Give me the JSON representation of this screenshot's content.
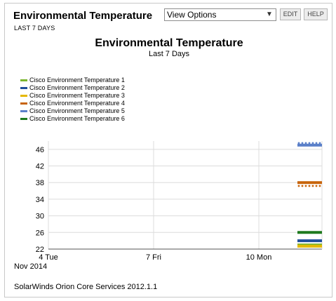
{
  "widget": {
    "title": "Environmental Temperature",
    "subtitle": "LAST 7 DAYS",
    "view_options": "View Options",
    "edit_label": "EDIT",
    "help_label": "HELP"
  },
  "footer": {
    "text": "SolarWinds Orion Core Services 2012.1.1"
  },
  "colors": {
    "border": "#c8c8c8",
    "grid": "#d8d8d8",
    "button_bg": "#ececec"
  },
  "chart_data": {
    "type": "scatter",
    "title": "Environmental Temperature",
    "subtitle": "Last 7 Days",
    "legend_placement": "top-left",
    "grid": true,
    "y_ticks": [
      22,
      26,
      30,
      34,
      38,
      42,
      46
    ],
    "ylim": [
      22,
      48
    ],
    "x_ticks": [
      "4 Tue",
      "7 Fri",
      "10 Mon"
    ],
    "x_sublabel": "Nov 2014",
    "x_range_days": [
      4,
      11.8
    ],
    "series": [
      {
        "name": "Cisco Environment Temperature 1",
        "color": "#7bb52f",
        "values": [
          23.0
        ],
        "x_start": 11.1,
        "x_end": 11.8
      },
      {
        "name": "Cisco Environment Temperature 2",
        "color": "#1f4e9c",
        "values": [
          24.0
        ],
        "x_start": 11.1,
        "x_end": 11.8
      },
      {
        "name": "Cisco Environment Temperature 3",
        "color": "#e5b800",
        "values": [
          22.7
        ],
        "x_start": 11.1,
        "x_end": 11.8
      },
      {
        "name": "Cisco Environment Temperature 4",
        "color": "#c8640a",
        "values": [
          38.0,
          37.2
        ],
        "x_start": 11.1,
        "x_end": 11.8
      },
      {
        "name": "Cisco Environment Temperature 5",
        "color": "#5b80c9",
        "values": [
          47.0,
          47.5
        ],
        "x_start": 11.1,
        "x_end": 11.8
      },
      {
        "name": "Cisco Environment Temperature 6",
        "color": "#1e7a1e",
        "values": [
          26.0
        ],
        "x_start": 11.1,
        "x_end": 11.8
      }
    ]
  }
}
